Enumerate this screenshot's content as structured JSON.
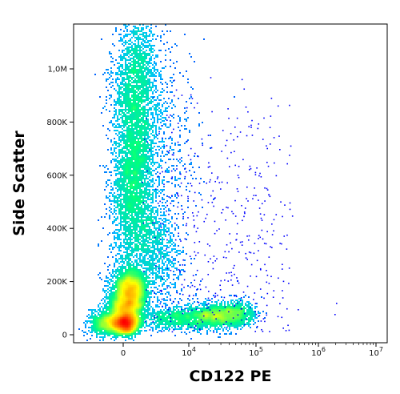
{
  "chart_data": {
    "type": "scatter",
    "title": "",
    "xlabel": "CD122 PE",
    "ylabel": "Side Scatter",
    "x_scale": "biexponential",
    "x_ticks": [
      {
        "value": 0,
        "label": "0"
      },
      {
        "value": 10000,
        "label": "10",
        "sup": "4"
      },
      {
        "value": 100000,
        "label": "10",
        "sup": "5"
      },
      {
        "value": 1000000,
        "label": "10",
        "sup": "6"
      },
      {
        "value": 10000000,
        "label": "10",
        "sup": "7"
      }
    ],
    "y_ticks": [
      {
        "value": 0,
        "label": "0"
      },
      {
        "value": 200000,
        "label": "200K"
      },
      {
        "value": 400000,
        "label": "400K"
      },
      {
        "value": 600000,
        "label": "600K"
      },
      {
        "value": 800000,
        "label": "800K"
      },
      {
        "value": 1000000,
        "label": "1,0M"
      }
    ],
    "ylim": [
      0,
      1150000
    ],
    "grid": false,
    "legend": "none",
    "color_map": [
      "#0000ff",
      "#00bfff",
      "#00ff7f",
      "#ffff00",
      "#ff8000",
      "#ff0000"
    ],
    "populations": [
      {
        "x_center": 100,
        "y_center": 40000,
        "density": "highest"
      },
      {
        "x_center": 100,
        "y_center": 170000,
        "density": "high"
      },
      {
        "x_center": 300,
        "y_center": 620000,
        "density": "medium"
      },
      {
        "x_center": 30000,
        "y_center": 80000,
        "density": "medium"
      }
    ]
  }
}
